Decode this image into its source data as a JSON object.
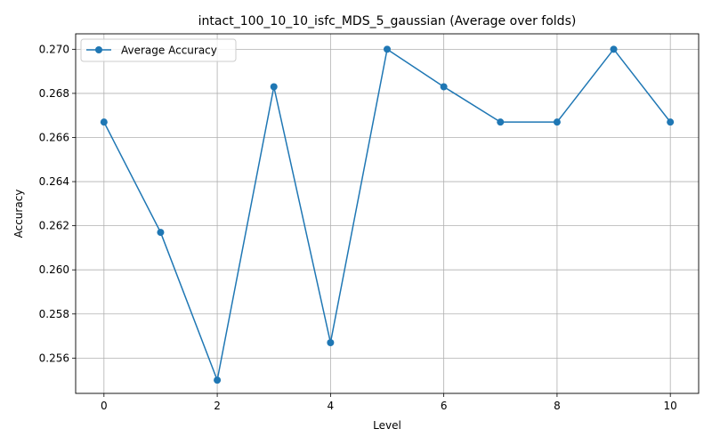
{
  "chart_data": {
    "type": "line",
    "title": "intact_100_10_10_isfc_MDS_5_gaussian (Average over folds)",
    "xlabel": "Level",
    "ylabel": "Accuracy",
    "xlim": [
      -0.5,
      10.5
    ],
    "ylim": [
      0.2544,
      0.2707
    ],
    "x_ticks": [
      0,
      2,
      4,
      6,
      8,
      10
    ],
    "x_tick_labels": [
      "0",
      "2",
      "4",
      "6",
      "8",
      "10"
    ],
    "y_ticks": [
      0.256,
      0.258,
      0.26,
      0.262,
      0.264,
      0.266,
      0.268,
      0.27
    ],
    "y_tick_labels": [
      "0.256",
      "0.258",
      "0.260",
      "0.262",
      "0.264",
      "0.266",
      "0.268",
      "0.270"
    ],
    "grid": true,
    "legend_position": "top-left",
    "series": [
      {
        "name": "Average Accuracy",
        "color": "#1f77b4",
        "marker": "circle",
        "x": [
          0,
          1,
          2,
          3,
          4,
          5,
          6,
          7,
          8,
          9,
          10
        ],
        "values": [
          0.2667,
          0.2617,
          0.255,
          0.2683,
          0.2567,
          0.27,
          0.2683,
          0.2667,
          0.2667,
          0.27,
          0.2667
        ]
      }
    ]
  }
}
